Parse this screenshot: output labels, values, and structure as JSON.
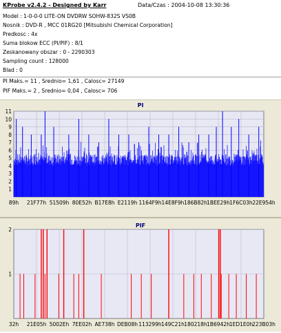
{
  "info": {
    "app_title": "KProbe v2.4.2 - Designed by Karr",
    "date": "Data/Czas : 2004-10-08 13:30:36",
    "lines": [
      "Model : 1-0-0-0 LITE-ON DVDRW SOHW-832S  VS0B",
      "Nosnik : DVD-R , MCC 01RG20  [Mitsubishi Chemical Corporation]",
      "Predkosc : 4x",
      "Suma blokow ECC (PI/PIF) : 8/1",
      "Zeskanowany obszar : 0 - 2290303",
      "Sampling count : 128000",
      "Blad : 0",
      "PI Maks.= 11 , Srednio= 1,61 , Calosc= 27149",
      "PIF Maks.= 2 , Srednio= 0,04 , Calosc= 706"
    ]
  },
  "chart_data": [
    {
      "type": "bar",
      "title": "PI",
      "ylim": [
        0,
        11
      ],
      "y_ticks": [
        "1",
        "2",
        "3",
        "4",
        "5",
        "6",
        "7",
        "8",
        "9",
        "10",
        "11"
      ],
      "x_ticks": [
        "89h",
        "21F77h",
        "51509h",
        "80E52h",
        "B17E8h",
        "E2119h",
        "1164F9h",
        "14E8F9h",
        "186B82h",
        "1BEE29h",
        "1F6C03h",
        "22E954h"
      ],
      "grid": true,
      "colors": {
        "bar": "#0000ff",
        "plot_bg": "#e8e8f4",
        "grid": "#b8b8cc"
      },
      "max": 11,
      "typical_band": [
        4,
        5.5
      ],
      "spikes": [
        {
          "pos": 0.01,
          "value": 10
        },
        {
          "pos": 0.035,
          "value": 9
        },
        {
          "pos": 0.07,
          "value": 8
        },
        {
          "pos": 0.11,
          "value": 8
        },
        {
          "pos": 0.125,
          "value": 11
        },
        {
          "pos": 0.16,
          "value": 9
        },
        {
          "pos": 0.22,
          "value": 8
        },
        {
          "pos": 0.26,
          "value": 10
        },
        {
          "pos": 0.3,
          "value": 8
        },
        {
          "pos": 0.34,
          "value": 7
        },
        {
          "pos": 0.38,
          "value": 10
        },
        {
          "pos": 0.42,
          "value": 8
        },
        {
          "pos": 0.46,
          "value": 8
        },
        {
          "pos": 0.5,
          "value": 7
        },
        {
          "pos": 0.54,
          "value": 9
        },
        {
          "pos": 0.58,
          "value": 8
        },
        {
          "pos": 0.62,
          "value": 8
        },
        {
          "pos": 0.66,
          "value": 9
        },
        {
          "pos": 0.7,
          "value": 7
        },
        {
          "pos": 0.74,
          "value": 8
        },
        {
          "pos": 0.78,
          "value": 8
        },
        {
          "pos": 0.81,
          "value": 9
        },
        {
          "pos": 0.835,
          "value": 11
        },
        {
          "pos": 0.87,
          "value": 9
        },
        {
          "pos": 0.9,
          "value": 10
        },
        {
          "pos": 0.94,
          "value": 8
        },
        {
          "pos": 0.98,
          "value": 9
        }
      ]
    },
    {
      "type": "bar",
      "title": "PIF",
      "ylim": [
        0,
        2
      ],
      "y_ticks": [
        "1",
        "2"
      ],
      "x_ticks": [
        "32h",
        "21E05h",
        "5002Eh",
        "7EE02h",
        "AE738h",
        "DEB08h",
        "113299h",
        "149C21h",
        "180218h",
        "1B6942h",
        "1ED1E0h",
        "223B03h"
      ],
      "grid": true,
      "colors": {
        "bar": "#ff0000",
        "plot_bg": "#e8e8f4",
        "grid": "#b8b8cc"
      },
      "events": [
        {
          "pos": 0.025,
          "value": 1
        },
        {
          "pos": 0.04,
          "value": 1
        },
        {
          "pos": 0.085,
          "value": 1
        },
        {
          "pos": 0.11,
          "value": 2
        },
        {
          "pos": 0.118,
          "value": 2
        },
        {
          "pos": 0.125,
          "value": 1
        },
        {
          "pos": 0.133,
          "value": 2
        },
        {
          "pos": 0.18,
          "value": 1
        },
        {
          "pos": 0.2,
          "value": 2
        },
        {
          "pos": 0.24,
          "value": 1
        },
        {
          "pos": 0.26,
          "value": 1
        },
        {
          "pos": 0.28,
          "value": 2
        },
        {
          "pos": 0.35,
          "value": 1
        },
        {
          "pos": 0.47,
          "value": 1
        },
        {
          "pos": 0.51,
          "value": 1
        },
        {
          "pos": 0.55,
          "value": 1
        },
        {
          "pos": 0.62,
          "value": 2
        },
        {
          "pos": 0.68,
          "value": 1
        },
        {
          "pos": 0.72,
          "value": 1
        },
        {
          "pos": 0.75,
          "value": 1
        },
        {
          "pos": 0.79,
          "value": 1
        },
        {
          "pos": 0.82,
          "value": 2
        },
        {
          "pos": 0.826,
          "value": 2
        },
        {
          "pos": 0.83,
          "value": 1
        },
        {
          "pos": 0.86,
          "value": 1
        },
        {
          "pos": 0.89,
          "value": 1
        },
        {
          "pos": 0.93,
          "value": 1
        },
        {
          "pos": 0.97,
          "value": 1
        }
      ]
    }
  ]
}
